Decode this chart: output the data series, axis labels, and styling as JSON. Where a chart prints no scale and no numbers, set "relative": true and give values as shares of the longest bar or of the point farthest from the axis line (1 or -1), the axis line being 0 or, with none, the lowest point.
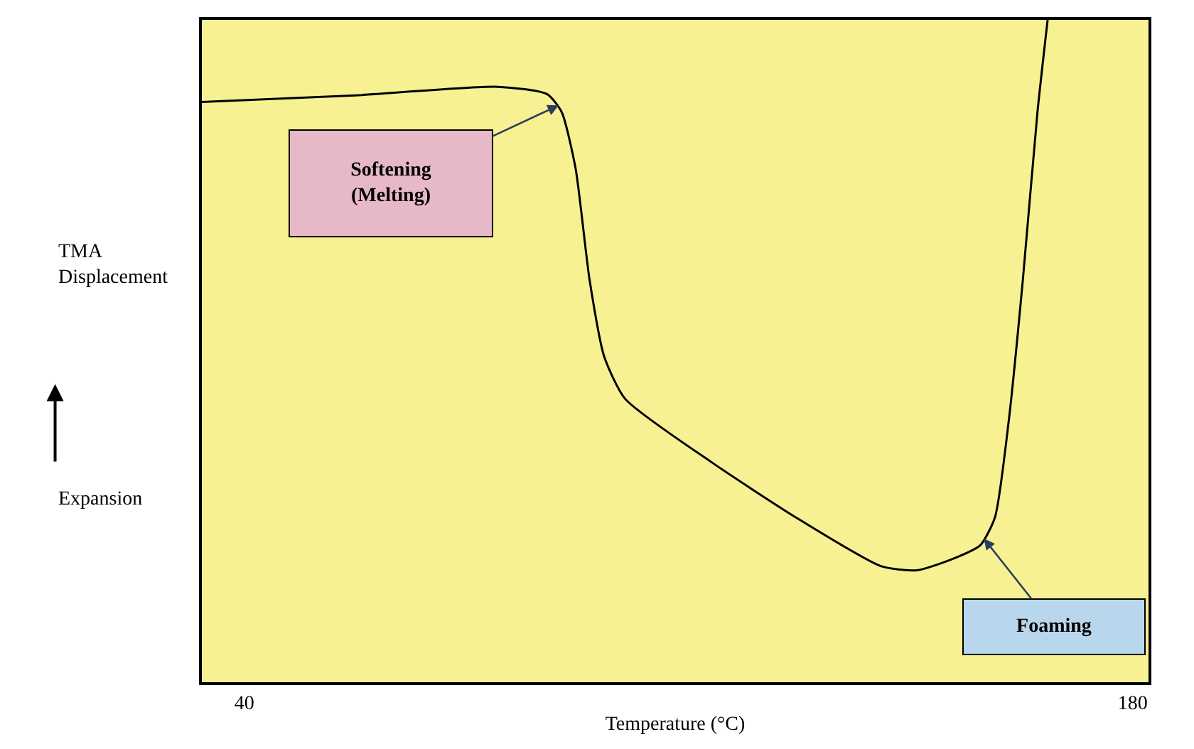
{
  "chart_data": {
    "type": "line",
    "relative": true,
    "xlabel": "Temperature (°C)",
    "ylabel": "TMA\nDisplacement",
    "xlim": [
      33.3,
      182.5
    ],
    "xticks": [
      40,
      180
    ],
    "x": [
      33.3,
      57.5,
      79.9,
      87.7,
      90.0,
      92.2,
      94.4,
      96.7,
      100.0,
      113.5,
      126.9,
      140.4,
      146.0,
      151.6,
      156.0,
      158.3,
      160.5,
      162.7,
      165.0,
      166.6
    ],
    "series": [
      {
        "color": "#000000",
        "values": [
          0.876,
          0.886,
          0.899,
          0.888,
          0.861,
          0.776,
          0.608,
          0.492,
          0.428,
          0.333,
          0.249,
          0.175,
          0.169,
          0.186,
          0.207,
          0.249,
          0.397,
          0.608,
          0.861,
          1.0
        ]
      }
    ],
    "annotations": [
      "Softening\n(Melting)",
      "Foaming",
      "Expansion"
    ],
    "grid": false,
    "marker": "none",
    "line_style": "solid"
  }
}
